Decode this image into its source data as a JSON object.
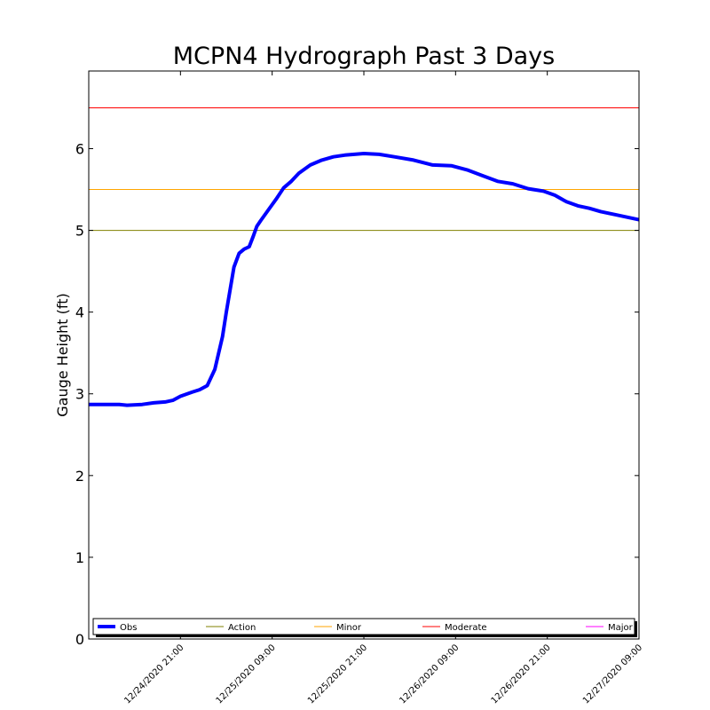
{
  "chart_data": {
    "type": "line",
    "title": "MCPN4 Hydrograph Past 3 Days",
    "xlabel": "",
    "ylabel": "Gauge Height (ft)",
    "ylim": [
      0,
      6.95
    ],
    "yticks": [
      0,
      1,
      2,
      3,
      4,
      5,
      6
    ],
    "xlim": [
      "12/24/2020 09:00",
      "12/27/2020 09:00"
    ],
    "xticks": [
      "12/24/2020 21:00",
      "12/25/2020 09:00",
      "12/25/2020 21:00",
      "12/26/2020 09:00",
      "12/26/2020 21:00",
      "12/27/2020 09:00"
    ],
    "legend_placement": "bottom",
    "series": [
      {
        "name": "Obs",
        "color": "#0000ff",
        "x": [
          "12/24/2020 09:00",
          "12/24/2020 13:00",
          "12/24/2020 14:00",
          "12/24/2020 16:00",
          "12/24/2020 17:30",
          "12/24/2020 19:00",
          "12/24/2020 20:00",
          "12/24/2020 21:00",
          "12/24/2020 22:30",
          "12/24/2020 23:30",
          "12/25/2020 00:30",
          "12/25/2020 01:30",
          "12/25/2020 02:30",
          "12/25/2020 03:00",
          "12/25/2020 04:00",
          "12/25/2020 04:40",
          "12/25/2020 05:20",
          "12/25/2020 06:00",
          "12/25/2020 06:30",
          "12/25/2020 07:00",
          "12/25/2020 07:30",
          "12/25/2020 08:30",
          "12/25/2020 09:30",
          "12/25/2020 10:30",
          "12/25/2020 11:30",
          "12/25/2020 12:30",
          "12/25/2020 14:00",
          "12/25/2020 15:30",
          "12/25/2020 17:00",
          "12/25/2020 18:30",
          "12/25/2020 21:00",
          "12/25/2020 23:00",
          "12/26/2020 01:00",
          "12/26/2020 03:30",
          "12/26/2020 06:00",
          "12/26/2020 08:30",
          "12/26/2020 10:30",
          "12/26/2020 12:30",
          "12/26/2020 14:30",
          "12/26/2020 16:30",
          "12/26/2020 18:30",
          "12/26/2020 20:30",
          "12/26/2020 22:00",
          "12/26/2020 23:30",
          "12/27/2020 01:00",
          "12/27/2020 02:30",
          "12/27/2020 04:00",
          "12/27/2020 06:00",
          "12/27/2020 07:30",
          "12/27/2020 09:00"
        ],
        "y": [
          2.87,
          2.87,
          2.86,
          2.87,
          2.89,
          2.9,
          2.92,
          2.97,
          3.02,
          3.05,
          3.1,
          3.3,
          3.7,
          4.0,
          4.55,
          4.72,
          4.77,
          4.8,
          4.92,
          5.05,
          5.12,
          5.25,
          5.38,
          5.52,
          5.6,
          5.7,
          5.8,
          5.86,
          5.9,
          5.92,
          5.94,
          5.93,
          5.9,
          5.86,
          5.8,
          5.79,
          5.74,
          5.67,
          5.6,
          5.57,
          5.51,
          5.48,
          5.43,
          5.35,
          5.3,
          5.27,
          5.23,
          5.19,
          5.16,
          5.13
        ]
      },
      {
        "name": "Action",
        "color": "#808000",
        "value": 5.0
      },
      {
        "name": "Minor",
        "color": "#ffa500",
        "value": 5.5
      },
      {
        "name": "Moderate",
        "color": "#ff0000",
        "value": 6.5
      },
      {
        "name": "Major",
        "color": "#ff00ff",
        "value": null
      }
    ]
  }
}
